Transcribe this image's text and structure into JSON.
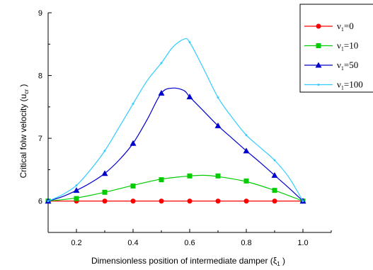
{
  "chart_data": {
    "type": "line",
    "xlabel_text": "Dimensionless position of intermediate damper (",
    "xlabel_sym": "ξ",
    "xlabel_sub": "1",
    "xlabel_tail": " )",
    "ylabel_text": "Critical folw velocity (u",
    "ylabel_sub": "cr",
    "ylabel_tail": " )",
    "xlim": [
      0.1,
      1.1
    ],
    "ylim": [
      5.5,
      9.0
    ],
    "x_ticks": [
      0.2,
      0.4,
      0.6,
      0.8,
      1.0
    ],
    "x_tick_labels": [
      "0.2",
      "0.4",
      "0.6",
      "0.8",
      "1.0"
    ],
    "y_ticks": [
      6,
      7,
      8,
      9
    ],
    "y_tick_labels": [
      "6",
      "7",
      "8",
      "9"
    ],
    "grid": false,
    "legend_position": "top-right",
    "series": [
      {
        "name_sym": "ν",
        "name_sub": "1",
        "name_tail": "=0",
        "color": "#ff0000",
        "marker": "circle",
        "x": [
          0.1,
          0.2,
          0.3,
          0.4,
          0.5,
          0.6,
          0.7,
          0.8,
          0.9,
          1.0
        ],
        "y": [
          6.0,
          6.0,
          6.0,
          6.0,
          6.0,
          6.0,
          6.0,
          6.0,
          6.0,
          6.0
        ],
        "curve_x": [
          0.1,
          1.0
        ],
        "curve_y": [
          6.0,
          6.0
        ]
      },
      {
        "name_sym": "ν",
        "name_sub": "1",
        "name_tail": "=10",
        "color": "#00cc00",
        "marker": "square",
        "x": [
          0.1,
          0.2,
          0.3,
          0.4,
          0.5,
          0.6,
          0.7,
          0.8,
          0.9,
          1.0
        ],
        "y": [
          6.0,
          6.04,
          6.14,
          6.24,
          6.34,
          6.4,
          6.4,
          6.32,
          6.17,
          6.0
        ],
        "curve_x": [
          0.1,
          0.2,
          0.3,
          0.4,
          0.5,
          0.6,
          0.65,
          0.7,
          0.8,
          0.9,
          1.0
        ],
        "curve_y": [
          6.0,
          6.05,
          6.14,
          6.25,
          6.35,
          6.4,
          6.41,
          6.39,
          6.31,
          6.17,
          6.0
        ]
      },
      {
        "name_sym": "ν",
        "name_sub": "1",
        "name_tail": "=50",
        "color": "#0000cc",
        "marker": "triangle",
        "x": [
          0.1,
          0.2,
          0.3,
          0.4,
          0.5,
          0.6,
          0.7,
          0.8,
          0.9,
          1.0
        ],
        "y": [
          6.0,
          6.17,
          6.44,
          6.92,
          7.72,
          7.66,
          7.2,
          6.8,
          6.41,
          6.0
        ],
        "curve_x": [
          0.1,
          0.15,
          0.2,
          0.25,
          0.3,
          0.35,
          0.4,
          0.45,
          0.5,
          0.54,
          0.58,
          0.6,
          0.65,
          0.7,
          0.75,
          0.8,
          0.85,
          0.9,
          0.95,
          1.0
        ],
        "curve_y": [
          6.0,
          6.07,
          6.17,
          6.29,
          6.44,
          6.65,
          6.92,
          7.3,
          7.72,
          7.8,
          7.76,
          7.66,
          7.43,
          7.2,
          7.0,
          6.8,
          6.61,
          6.41,
          6.21,
          6.0
        ]
      },
      {
        "name_sym": "ν",
        "name_sub": "1",
        "name_tail": "=100",
        "color": "#33ccff",
        "marker": "dot",
        "x": [
          0.1,
          0.2,
          0.3,
          0.4,
          0.5,
          0.6,
          0.7,
          0.8,
          0.9,
          1.0
        ],
        "y": [
          6.0,
          6.25,
          6.8,
          7.55,
          8.2,
          8.53,
          7.65,
          7.05,
          6.65,
          6.0
        ],
        "curve_x": [
          0.1,
          0.15,
          0.2,
          0.25,
          0.3,
          0.35,
          0.4,
          0.45,
          0.5,
          0.54,
          0.58,
          0.6,
          0.65,
          0.7,
          0.75,
          0.8,
          0.85,
          0.9,
          0.95,
          1.0
        ],
        "curve_y": [
          6.0,
          6.1,
          6.25,
          6.5,
          6.8,
          7.17,
          7.55,
          7.92,
          8.2,
          8.45,
          8.58,
          8.53,
          8.1,
          7.65,
          7.33,
          7.05,
          6.85,
          6.65,
          6.38,
          6.0
        ]
      }
    ]
  }
}
